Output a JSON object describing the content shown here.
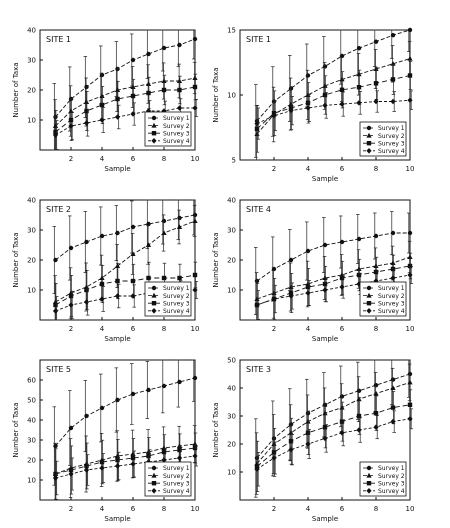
{
  "figure": {
    "x_axis_label": "Sample",
    "y_axis_label": "Number of Taxa"
  },
  "chart_data": [
    {
      "type": "line",
      "title": "SITE 1",
      "xlabel": "Sample",
      "ylabel": "Number of Taxa",
      "xlim": [
        0,
        10
      ],
      "ylim": [
        0,
        40
      ],
      "xticks": [
        "2",
        "4",
        "6",
        "8",
        "10"
      ],
      "yticks": [
        "10",
        "20",
        "30",
        "40"
      ],
      "legend_position": "bottom-right",
      "x": [
        1,
        2,
        3,
        4,
        5,
        6,
        7,
        8,
        9,
        10
      ],
      "series": [
        {
          "name": "Survey 1",
          "values": [
            11,
            17,
            21,
            25,
            27,
            30,
            32,
            34,
            35,
            37
          ]
        },
        {
          "name": "Survey 2",
          "values": [
            8,
            13,
            16,
            18,
            20,
            21,
            22,
            23,
            23,
            24
          ]
        },
        {
          "name": "Survey 3",
          "values": [
            6,
            10,
            13,
            15,
            17,
            18,
            19,
            20,
            20,
            21
          ]
        },
        {
          "name": "Survey 4",
          "values": [
            5,
            8,
            9,
            10,
            11,
            12,
            13,
            13,
            14,
            14
          ]
        }
      ]
    },
    {
      "type": "line",
      "title": "SITE 1",
      "xlabel": "Sample",
      "ylabel": "Number of Taxa",
      "xlim": [
        0,
        10
      ],
      "ylim": [
        5,
        15
      ],
      "xticks": [
        "2",
        "4",
        "6",
        "8",
        "10"
      ],
      "yticks": [
        "5",
        "10",
        "15"
      ],
      "legend_position": "bottom-right",
      "x": [
        1,
        2,
        3,
        4,
        5,
        6,
        7,
        8,
        9,
        10
      ],
      "series": [
        {
          "name": "Survey 1",
          "values": [
            8.0,
            9.5,
            10.5,
            11.5,
            12.2,
            13.0,
            13.6,
            14.1,
            14.6,
            15.0
          ]
        },
        {
          "name": "Survey 2",
          "values": [
            7.0,
            8.5,
            9.3,
            10.0,
            10.7,
            11.2,
            11.6,
            12.0,
            12.4,
            12.8
          ]
        },
        {
          "name": "Survey 3",
          "values": [
            7.4,
            8.6,
            9.0,
            9.4,
            10.0,
            10.4,
            10.6,
            10.9,
            11.2,
            11.5
          ]
        },
        {
          "name": "Survey 4",
          "values": [
            7.8,
            8.4,
            8.8,
            9.0,
            9.2,
            9.3,
            9.4,
            9.5,
            9.5,
            9.6
          ]
        }
      ]
    },
    {
      "type": "line",
      "title": "SITE 2",
      "xlabel": "Sample",
      "ylabel": "Number of Taxa",
      "xlim": [
        0,
        10
      ],
      "ylim": [
        0,
        40
      ],
      "xticks": [
        "2",
        "4",
        "6",
        "8",
        "10"
      ],
      "yticks": [
        "10",
        "20",
        "30",
        "40"
      ],
      "legend_position": "bottom-right",
      "x": [
        1,
        2,
        3,
        4,
        5,
        6,
        7,
        8,
        9,
        10
      ],
      "series": [
        {
          "name": "Survey 1",
          "values": [
            20,
            24,
            26,
            28,
            29,
            31,
            32,
            33,
            34,
            35
          ]
        },
        {
          "name": "Survey 2",
          "values": [
            6,
            9,
            11,
            14,
            18,
            22,
            25,
            29,
            31,
            33
          ]
        },
        {
          "name": "Survey 3",
          "values": [
            5,
            8,
            10,
            12,
            13,
            13,
            14,
            14,
            14,
            15
          ]
        },
        {
          "name": "Survey 4",
          "values": [
            3,
            5,
            6,
            7,
            8,
            8,
            9,
            9,
            10,
            10
          ]
        }
      ]
    },
    {
      "type": "line",
      "title": "SITE 4",
      "xlabel": "Sample",
      "ylabel": "Number of Taxa",
      "xlim": [
        0,
        10
      ],
      "ylim": [
        0,
        40
      ],
      "xticks": [
        "2",
        "4",
        "6",
        "8",
        "10"
      ],
      "yticks": [
        "10",
        "20",
        "30",
        "40"
      ],
      "legend_position": "bottom-right",
      "x": [
        1,
        2,
        3,
        4,
        5,
        6,
        7,
        8,
        9,
        10
      ],
      "series": [
        {
          "name": "Survey 1",
          "values": [
            13,
            17,
            20,
            23,
            25,
            26,
            27,
            28,
            29,
            29
          ]
        },
        {
          "name": "Survey 2",
          "values": [
            7,
            9,
            11,
            12,
            14,
            15,
            17,
            18,
            19,
            21
          ]
        },
        {
          "name": "Survey 3",
          "values": [
            5,
            7,
            9,
            11,
            12,
            14,
            15,
            16,
            17,
            18
          ]
        },
        {
          "name": "Survey 4",
          "values": [
            5,
            7,
            8,
            9,
            10,
            11,
            12,
            13,
            14,
            15
          ]
        }
      ]
    },
    {
      "type": "line",
      "title": "SITE 5",
      "xlabel": "Sample",
      "ylabel": "Number of Taxa",
      "xlim": [
        0,
        10
      ],
      "ylim": [
        0,
        70
      ],
      "xticks": [
        "2",
        "4",
        "6",
        "8",
        "10"
      ],
      "yticks": [
        "10",
        "20",
        "30",
        "40",
        "50",
        "60"
      ],
      "legend_position": "bottom-right",
      "x": [
        1,
        2,
        3,
        4,
        5,
        6,
        7,
        8,
        9,
        10
      ],
      "series": [
        {
          "name": "Survey 1",
          "values": [
            27,
            36,
            42,
            46,
            50,
            53,
            55,
            57,
            59,
            61
          ]
        },
        {
          "name": "Survey 2",
          "values": [
            13,
            16,
            18,
            20,
            22,
            23,
            24,
            26,
            27,
            28
          ]
        },
        {
          "name": "Survey 3",
          "values": [
            13,
            15,
            17,
            19,
            20,
            21,
            22,
            24,
            25,
            26
          ]
        },
        {
          "name": "Survey 4",
          "values": [
            11,
            13,
            15,
            16,
            17,
            18,
            19,
            20,
            21,
            22
          ]
        }
      ]
    },
    {
      "type": "line",
      "title": "SITE 3",
      "xlabel": "Sample",
      "ylabel": "Number of Taxa",
      "xlim": [
        0,
        10
      ],
      "ylim": [
        0,
        50
      ],
      "xticks": [
        "2",
        "4",
        "6",
        "8",
        "10"
      ],
      "yticks": [
        "10",
        "20",
        "30",
        "40",
        "50"
      ],
      "legend_position": "bottom-right",
      "x": [
        1,
        2,
        3,
        4,
        5,
        6,
        7,
        8,
        9,
        10
      ],
      "series": [
        {
          "name": "Survey 1",
          "values": [
            15,
            22,
            27,
            31,
            34,
            37,
            39,
            41,
            43,
            45
          ]
        },
        {
          "name": "Survey 2",
          "values": [
            13,
            20,
            24,
            28,
            31,
            33,
            36,
            38,
            40,
            42
          ]
        },
        {
          "name": "Survey 3",
          "values": [
            12,
            17,
            21,
            24,
            26,
            28,
            30,
            31,
            33,
            34
          ]
        },
        {
          "name": "Survey 4",
          "values": [
            11,
            15,
            18,
            20,
            22,
            24,
            25,
            26,
            28,
            29
          ]
        }
      ]
    }
  ]
}
